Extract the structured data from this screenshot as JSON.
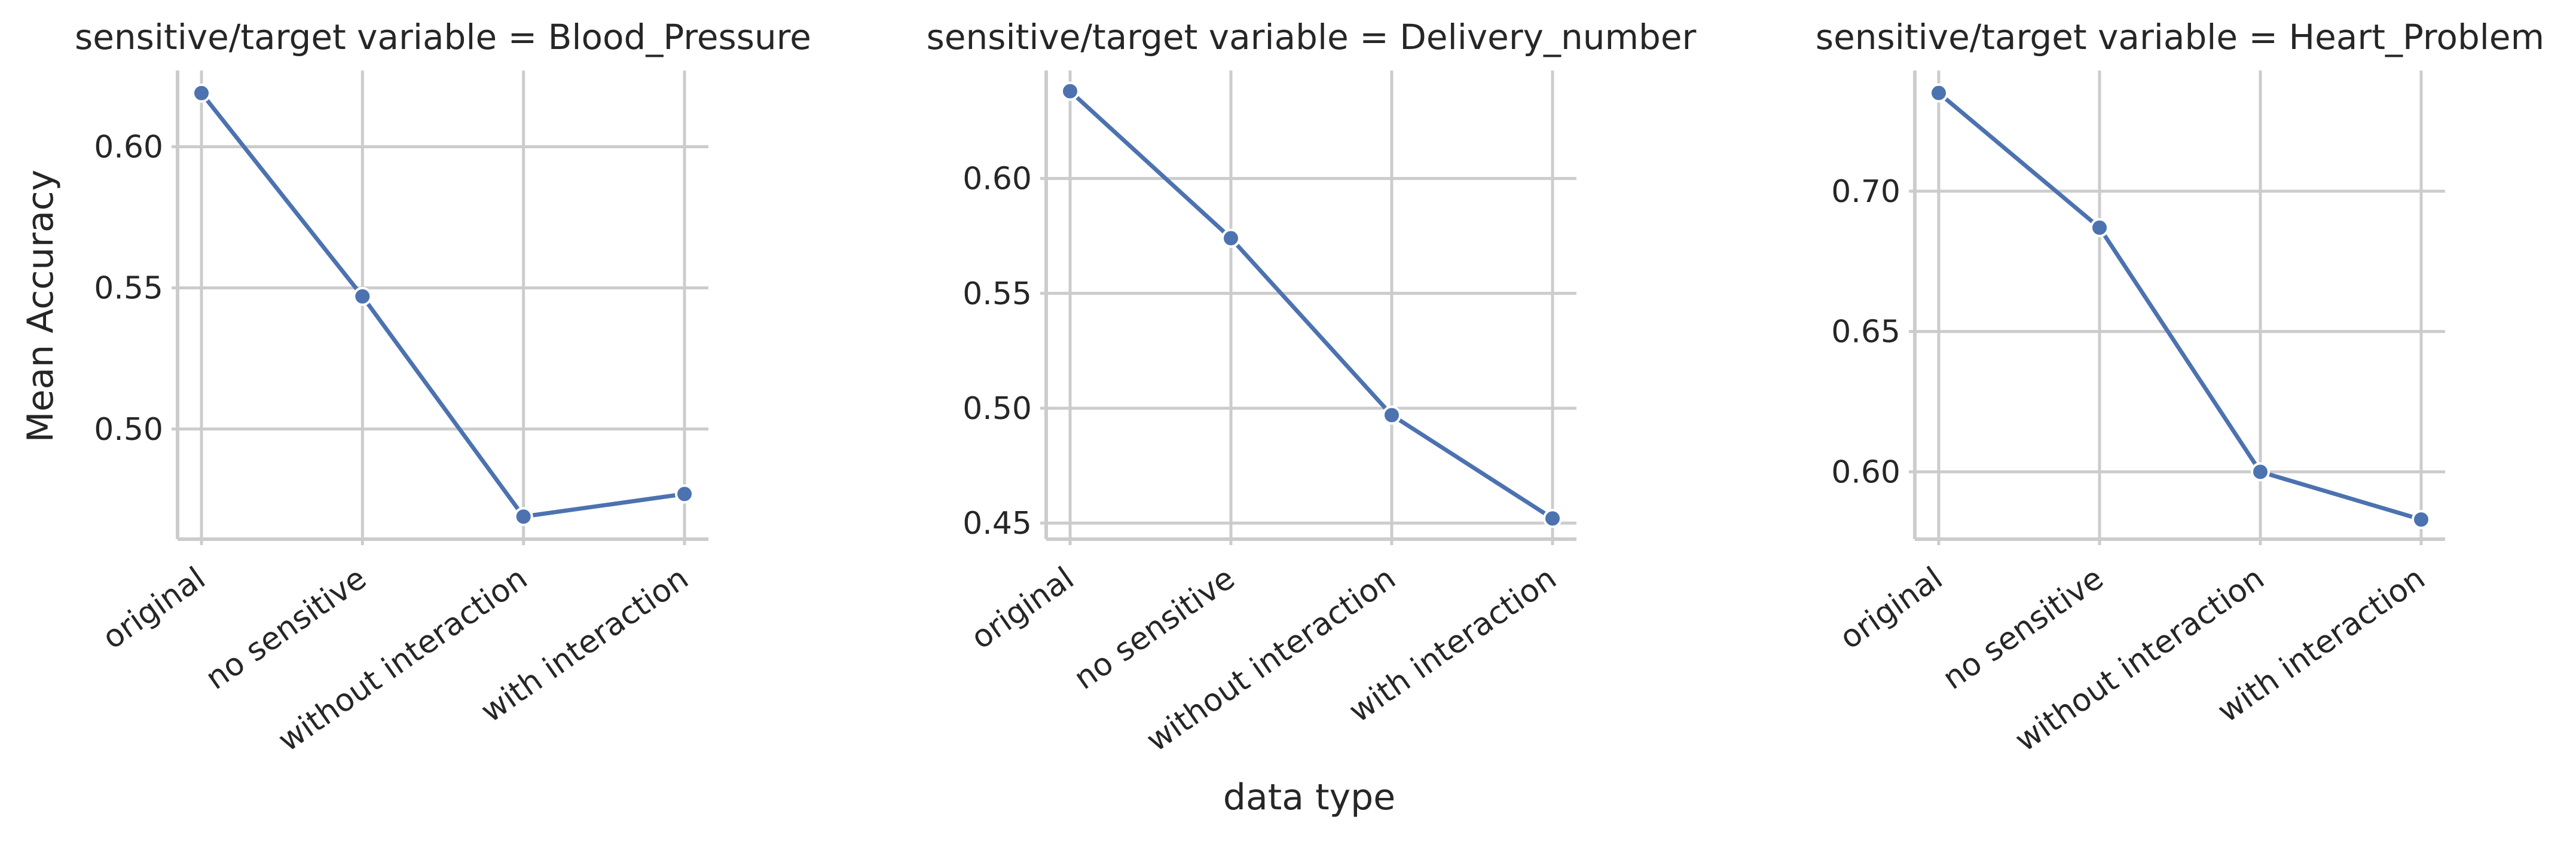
{
  "chart_data": {
    "type": "line",
    "facet_label": "sensitive/target variable",
    "xlabel": "data type",
    "ylabel": "Mean Accuracy",
    "categories": [
      "original",
      "no sensitive",
      "without interaction",
      "with interaction"
    ],
    "series_color": "#4c72b0",
    "grid": true,
    "panels": [
      {
        "title": "sensitive/target variable = Blood_Pressure",
        "variable": "Blood_Pressure",
        "values": [
          0.619,
          0.547,
          0.469,
          0.477
        ],
        "ylim": [
          0.461,
          0.627
        ],
        "yticks": [
          0.5,
          0.55,
          0.6
        ],
        "ytick_labels": [
          "0.50",
          "0.55",
          "0.60"
        ]
      },
      {
        "title": "sensitive/target variable = Delivery_number",
        "variable": "Delivery_number",
        "values": [
          0.638,
          0.574,
          0.497,
          0.452
        ],
        "ylim": [
          0.443,
          0.647
        ],
        "yticks": [
          0.45,
          0.5,
          0.55,
          0.6
        ],
        "ytick_labels": [
          "0.45",
          "0.50",
          "0.55",
          "0.60"
        ]
      },
      {
        "title": "sensitive/target variable = Heart_Problem",
        "variable": "Heart_Problem",
        "values": [
          0.735,
          0.687,
          0.6,
          0.583
        ],
        "ylim": [
          0.576,
          0.743
        ],
        "yticks": [
          0.6,
          0.65,
          0.7
        ],
        "ytick_labels": [
          "0.60",
          "0.65",
          "0.70"
        ]
      }
    ]
  }
}
